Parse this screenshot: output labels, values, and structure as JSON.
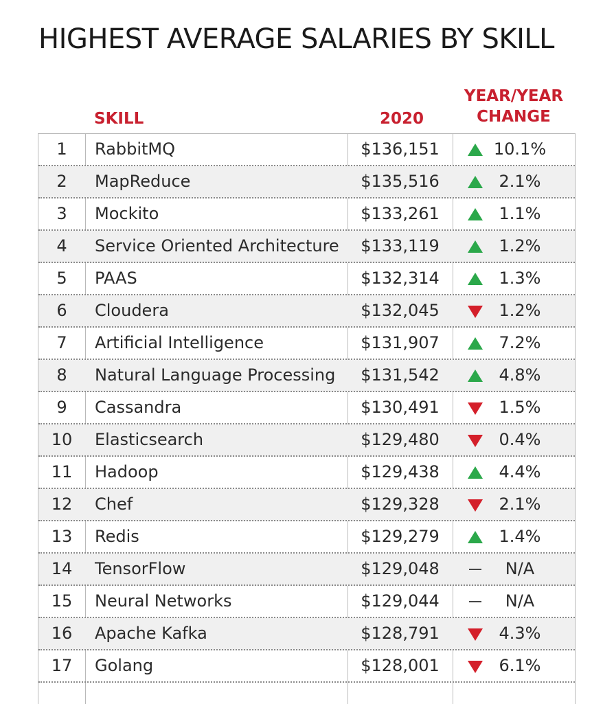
{
  "title": "HIGHEST AVERAGE SALARIES BY SKILL",
  "columns": {
    "skill": "SKILL",
    "year": "2020",
    "change": [
      "YEAR/YEAR",
      "CHANGE"
    ]
  },
  "chart_data": {
    "type": "table",
    "title": "HIGHEST AVERAGE SALARIES BY SKILL",
    "columns": [
      "SKILL",
      "2020",
      "YEAR/YEAR CHANGE"
    ],
    "rows": [
      {
        "rank": "1",
        "skill": "RabbitMQ",
        "salary": "$136,151",
        "direction": "up",
        "change": "10.1%"
      },
      {
        "rank": "2",
        "skill": "MapReduce",
        "salary": "$135,516",
        "direction": "up",
        "change": "2.1%"
      },
      {
        "rank": "3",
        "skill": "Mockito",
        "salary": "$133,261",
        "direction": "up",
        "change": "1.1%"
      },
      {
        "rank": "4",
        "skill": "Service Oriented Architecture",
        "salary": "$133,119",
        "direction": "up",
        "change": "1.2%"
      },
      {
        "rank": "5",
        "skill": "PAAS",
        "salary": "$132,314",
        "direction": "up",
        "change": "1.3%"
      },
      {
        "rank": "6",
        "skill": "Cloudera",
        "salary": "$132,045",
        "direction": "down",
        "change": "1.2%"
      },
      {
        "rank": "7",
        "skill": "Artificial Intelligence",
        "salary": "$131,907",
        "direction": "up",
        "change": "7.2%"
      },
      {
        "rank": "8",
        "skill": "Natural Language Processing",
        "salary": "$131,542",
        "direction": "up",
        "change": "4.8%"
      },
      {
        "rank": "9",
        "skill": "Cassandra",
        "salary": "$130,491",
        "direction": "down",
        "change": "1.5%"
      },
      {
        "rank": "10",
        "skill": "Elasticsearch",
        "salary": "$129,480",
        "direction": "down",
        "change": "0.4%"
      },
      {
        "rank": "11",
        "skill": "Hadoop",
        "salary": "$129,438",
        "direction": "up",
        "change": "4.4%"
      },
      {
        "rank": "12",
        "skill": "Chef",
        "salary": "$129,328",
        "direction": "down",
        "change": "2.1%"
      },
      {
        "rank": "13",
        "skill": "Redis",
        "salary": "$129,279",
        "direction": "up",
        "change": "1.4%"
      },
      {
        "rank": "14",
        "skill": "TensorFlow",
        "salary": "$129,048",
        "direction": "none",
        "change": "N/A"
      },
      {
        "rank": "15",
        "skill": "Neural Networks",
        "salary": "$129,044",
        "direction": "none",
        "change": "N/A"
      },
      {
        "rank": "16",
        "skill": "Apache Kafka",
        "salary": "$128,791",
        "direction": "down",
        "change": "4.3%"
      },
      {
        "rank": "17",
        "skill": "Golang",
        "salary": "$128,001",
        "direction": "down",
        "change": "6.1%"
      }
    ]
  },
  "colors": {
    "header_red": "#c8202f",
    "up_green": "#2ba84a",
    "down_red": "#d41f2a"
  }
}
